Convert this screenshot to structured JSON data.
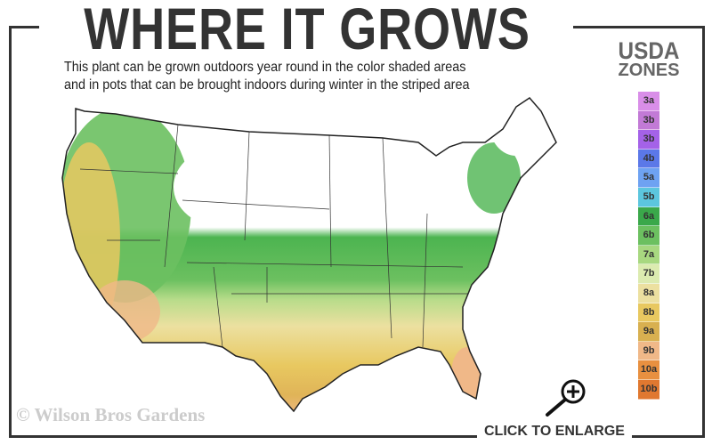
{
  "title": "WHERE IT GROWS",
  "subtitle_line1": "This plant can be grown outdoors year round in the color shaded areas",
  "subtitle_line2": "and in pots that can be brought indoors during winter in the striped area",
  "legend": {
    "title_line1": "USDA",
    "title_line2": "ZONES",
    "zones": [
      {
        "label": "3a",
        "color": "#d98ee8"
      },
      {
        "label": "3b",
        "color": "#c27ad6"
      },
      {
        "label": "3b",
        "color": "#a462e8"
      },
      {
        "label": "4b",
        "color": "#5b78e8"
      },
      {
        "label": "5a",
        "color": "#6ea2f2"
      },
      {
        "label": "5b",
        "color": "#5cc6de"
      },
      {
        "label": "6a",
        "color": "#3aa84a"
      },
      {
        "label": "6b",
        "color": "#6cc060"
      },
      {
        "label": "7a",
        "color": "#a8d880"
      },
      {
        "label": "7b",
        "color": "#dcebb0"
      },
      {
        "label": "8a",
        "color": "#ece0a0"
      },
      {
        "label": "8b",
        "color": "#e8c860"
      },
      {
        "label": "9a",
        "color": "#d8b050"
      },
      {
        "label": "9b",
        "color": "#f0b888"
      },
      {
        "label": "10a",
        "color": "#e89040"
      },
      {
        "label": "10b",
        "color": "#e07830"
      }
    ]
  },
  "copyright": "© Wilson Bros Gardens",
  "enlarge_label": "CLICK TO ENLARGE",
  "icons": {
    "enlarge": "magnifier-plus-icon"
  }
}
